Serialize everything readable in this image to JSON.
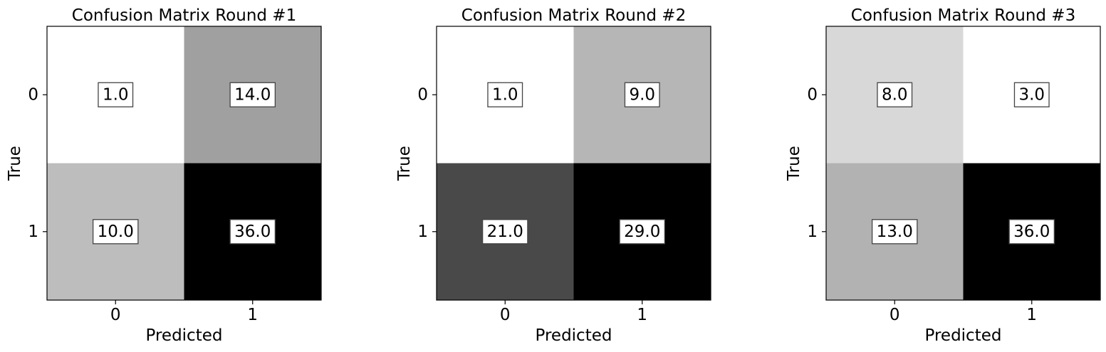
{
  "chart_data": [
    {
      "type": "heatmap",
      "title": "Confusion Matrix Round #1",
      "xlabel": "Predicted",
      "ylabel": "True",
      "x_categories": [
        "0",
        "1"
      ],
      "y_categories": [
        "0",
        "1"
      ],
      "values": [
        [
          "1.0",
          "14.0"
        ],
        [
          "10.0",
          "36.0"
        ]
      ],
      "colormap": "grayscale-reversed"
    },
    {
      "type": "heatmap",
      "title": "Confusion Matrix Round #2",
      "xlabel": "Predicted",
      "ylabel": "True",
      "x_categories": [
        "0",
        "1"
      ],
      "y_categories": [
        "0",
        "1"
      ],
      "values": [
        [
          "1.0",
          "9.0"
        ],
        [
          "21.0",
          "29.0"
        ]
      ],
      "colormap": "grayscale-reversed"
    },
    {
      "type": "heatmap",
      "title": "Confusion Matrix Round #3",
      "xlabel": "Predicted",
      "ylabel": "True",
      "x_categories": [
        "0",
        "1"
      ],
      "y_categories": [
        "0",
        "1"
      ],
      "values": [
        [
          "8.0",
          "3.0"
        ],
        [
          "13.0",
          "36.0"
        ]
      ],
      "colormap": "grayscale-reversed"
    }
  ]
}
